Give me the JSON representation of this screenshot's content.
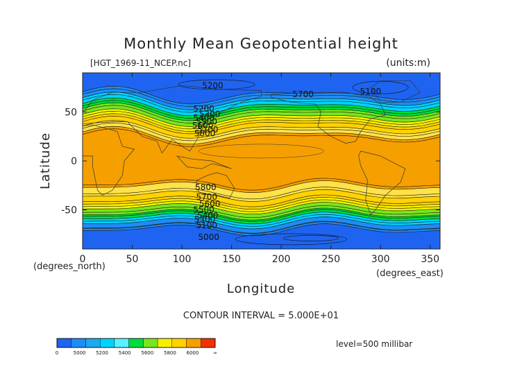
{
  "chart_data": {
    "type": "heatmap",
    "title": "Monthly Mean Geopotential height",
    "file_label": "[HGT_1969-11_NCEP.nc]",
    "units_label": "(units:m)",
    "xlabel": "Longitude",
    "ylabel": "Latitude",
    "x_unit_label": "(degrees_east)",
    "y_unit_label": "(degrees_north)",
    "xlim": [
      0,
      360
    ],
    "ylim": [
      -90,
      90
    ],
    "x_ticks": [
      0,
      50,
      100,
      150,
      200,
      250,
      300,
      350
    ],
    "y_ticks": [
      50,
      0,
      -50
    ],
    "contour_interval_text": "CONTOUR INTERVAL = 5.000E+01",
    "level_text": "level=500 millibar",
    "colorbar": {
      "labels": [
        "0",
        "5000",
        "5200",
        "5400",
        "5600",
        "5800",
        "6000",
        "∞"
      ],
      "bands": [
        {
          "lo": 0,
          "hi": 5000,
          "color": "#1e64f0"
        },
        {
          "lo": 5000,
          "hi": 5100,
          "color": "#1e8cf5"
        },
        {
          "lo": 5100,
          "hi": 5200,
          "color": "#19aaf0"
        },
        {
          "lo": 5200,
          "hi": 5300,
          "color": "#00d2ff"
        },
        {
          "lo": 5300,
          "hi": 5400,
          "color": "#5af0ff"
        },
        {
          "lo": 5400,
          "hi": 5500,
          "color": "#00dc3c"
        },
        {
          "lo": 5500,
          "hi": 5600,
          "color": "#78e61e"
        },
        {
          "lo": 5600,
          "hi": 5700,
          "color": "#f5f000"
        },
        {
          "lo": 5700,
          "hi": 5800,
          "color": "#ffd200"
        },
        {
          "lo": 5800,
          "hi": 6000,
          "color": "#f5a000"
        },
        {
          "lo": 6000,
          "hi": 9999,
          "color": "#f03200"
        }
      ]
    },
    "contour_labels": [
      {
        "text": "5200",
        "lon": 131,
        "lat": 77
      },
      {
        "text": "5700",
        "lon": 222,
        "lat": 68
      },
      {
        "text": "5100",
        "lon": 290,
        "lat": 71
      },
      {
        "text": "5200",
        "lon": 122,
        "lat": 53
      },
      {
        "text": "5300",
        "lon": 128,
        "lat": 48
      },
      {
        "text": "5400",
        "lon": 122,
        "lat": 44
      },
      {
        "text": "5500",
        "lon": 125,
        "lat": 40
      },
      {
        "text": "5600",
        "lon": 121,
        "lat": 36
      },
      {
        "text": "5700",
        "lon": 126,
        "lat": 32
      },
      {
        "text": "5800",
        "lon": 123,
        "lat": 28
      },
      {
        "text": "5800",
        "lon": 124,
        "lat": -27
      },
      {
        "text": "5700",
        "lon": 125,
        "lat": -37
      },
      {
        "text": "5600",
        "lon": 128,
        "lat": -44
      },
      {
        "text": "5500",
        "lon": 122,
        "lat": -50
      },
      {
        "text": "5400",
        "lon": 126,
        "lat": -56
      },
      {
        "text": "5300",
        "lon": 123,
        "lat": -60
      },
      {
        "text": "5100",
        "lon": 125,
        "lat": -66
      },
      {
        "text": "5000",
        "lon": 127,
        "lat": -78
      }
    ],
    "zonal_bands_lat": {
      "n_edges": [
        90,
        67,
        61,
        55,
        50,
        44,
        39,
        32,
        26
      ],
      "s_edges": [
        -90,
        -70,
        -63,
        -58,
        -54,
        -48,
        -43,
        -35,
        -26
      ]
    }
  }
}
